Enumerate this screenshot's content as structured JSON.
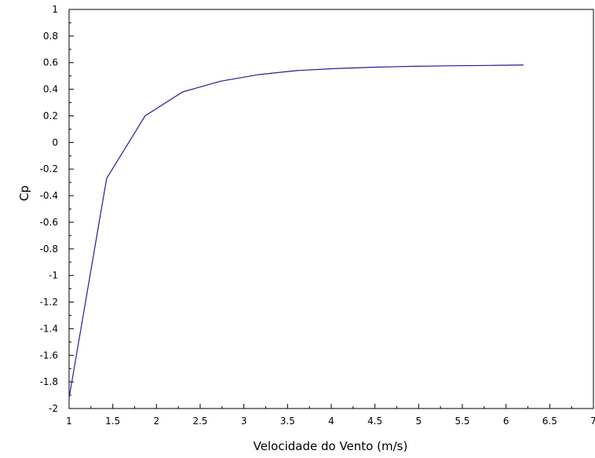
{
  "chart_data": {
    "type": "line",
    "title": "",
    "xlabel": "Velocidade do Vento (m/s)",
    "ylabel": "Cp",
    "xlim": [
      1,
      7
    ],
    "ylim": [
      -2,
      1
    ],
    "x_ticks": [
      "1",
      "1.5",
      "2",
      "2.5",
      "3",
      "3.5",
      "4",
      "4.5",
      "5",
      "5.5",
      "6",
      "6.5",
      "7"
    ],
    "y_ticks": [
      "1",
      "0.8",
      "0.6",
      "0.4",
      "0.2",
      "0",
      "-0.2",
      "-0.4",
      "-0.6",
      "-0.8",
      "-1",
      "-1.2",
      "-1.4",
      "-1.6",
      "-1.8",
      "-2"
    ],
    "grid": false,
    "colors": {
      "line": "#1f1f99",
      "axis": "#000000"
    },
    "series": [
      {
        "x": [
          1.0,
          1.43,
          1.87,
          2.3,
          2.73,
          3.17,
          3.6,
          4.03,
          4.47,
          4.9,
          5.33,
          5.77,
          6.2
        ],
        "y": [
          -1.92,
          -0.27,
          0.2,
          0.38,
          0.46,
          0.51,
          0.54,
          0.555,
          0.565,
          0.572,
          0.576,
          0.579,
          0.582
        ]
      }
    ]
  }
}
